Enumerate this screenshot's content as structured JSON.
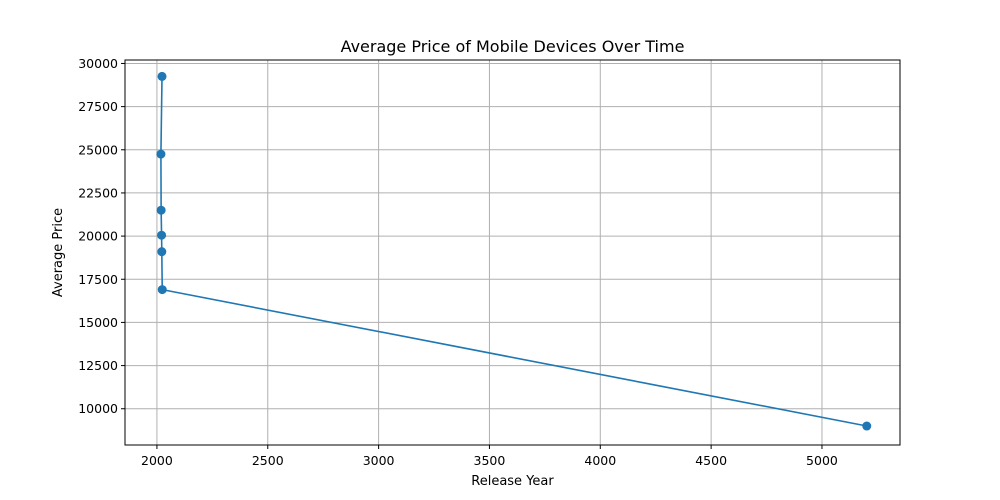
{
  "chart_data": {
    "type": "line",
    "title": "Average Price of Mobile Devices Over Time",
    "xlabel": "Release Year",
    "ylabel": "Average Price",
    "xlim": [
      1856,
      5352
    ],
    "ylim": [
      7900,
      30200
    ],
    "xticks": [
      2000,
      2500,
      3000,
      3500,
      4000,
      4500,
      5000
    ],
    "yticks": [
      10000,
      12500,
      15000,
      17500,
      20000,
      22500,
      25000,
      27500,
      30000
    ],
    "grid": true,
    "series": [
      {
        "color": "#1f77b4",
        "marker": "circle",
        "points": [
          {
            "x": 2023,
            "y": 29250
          },
          {
            "x": 2018,
            "y": 24750
          },
          {
            "x": 2019,
            "y": 21500
          },
          {
            "x": 2021,
            "y": 20050
          },
          {
            "x": 2022,
            "y": 19100
          },
          {
            "x": 2024,
            "y": 16900
          },
          {
            "x": 5202,
            "y": 9000
          }
        ]
      }
    ]
  }
}
